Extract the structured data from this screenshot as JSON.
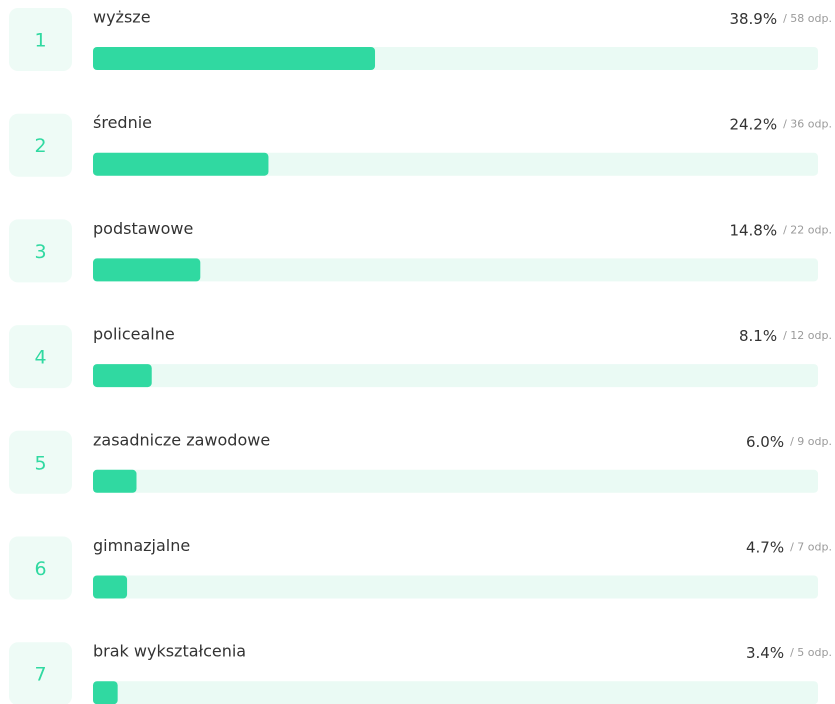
{
  "chart_data": {
    "type": "bar",
    "orientation": "horizontal",
    "ranks": [
      1,
      2,
      3,
      4,
      5,
      6,
      7
    ],
    "categories": [
      "wyższe",
      "średnie",
      "podstawowe",
      "policealne",
      "zasadnicze zawodowe",
      "gimnazjalne",
      "brak wykształcenia"
    ],
    "values": [
      38.9,
      24.2,
      14.8,
      8.1,
      6.0,
      4.7,
      3.4
    ],
    "value_labels": [
      "38.9%",
      "24.2%",
      "14.8%",
      "8.1%",
      "6.0%",
      "4.7%",
      "3.4%"
    ],
    "count_labels": [
      "/ 58 odp.",
      "/ 36 odp.",
      "/ 22 odp.",
      "/ 12 odp.",
      "/ 9 odp.",
      "/ 7 odp.",
      "/ 5 odp."
    ],
    "color": "#30d9a1",
    "track_color": "#eafaf4",
    "xlim": [
      0,
      100
    ]
  }
}
